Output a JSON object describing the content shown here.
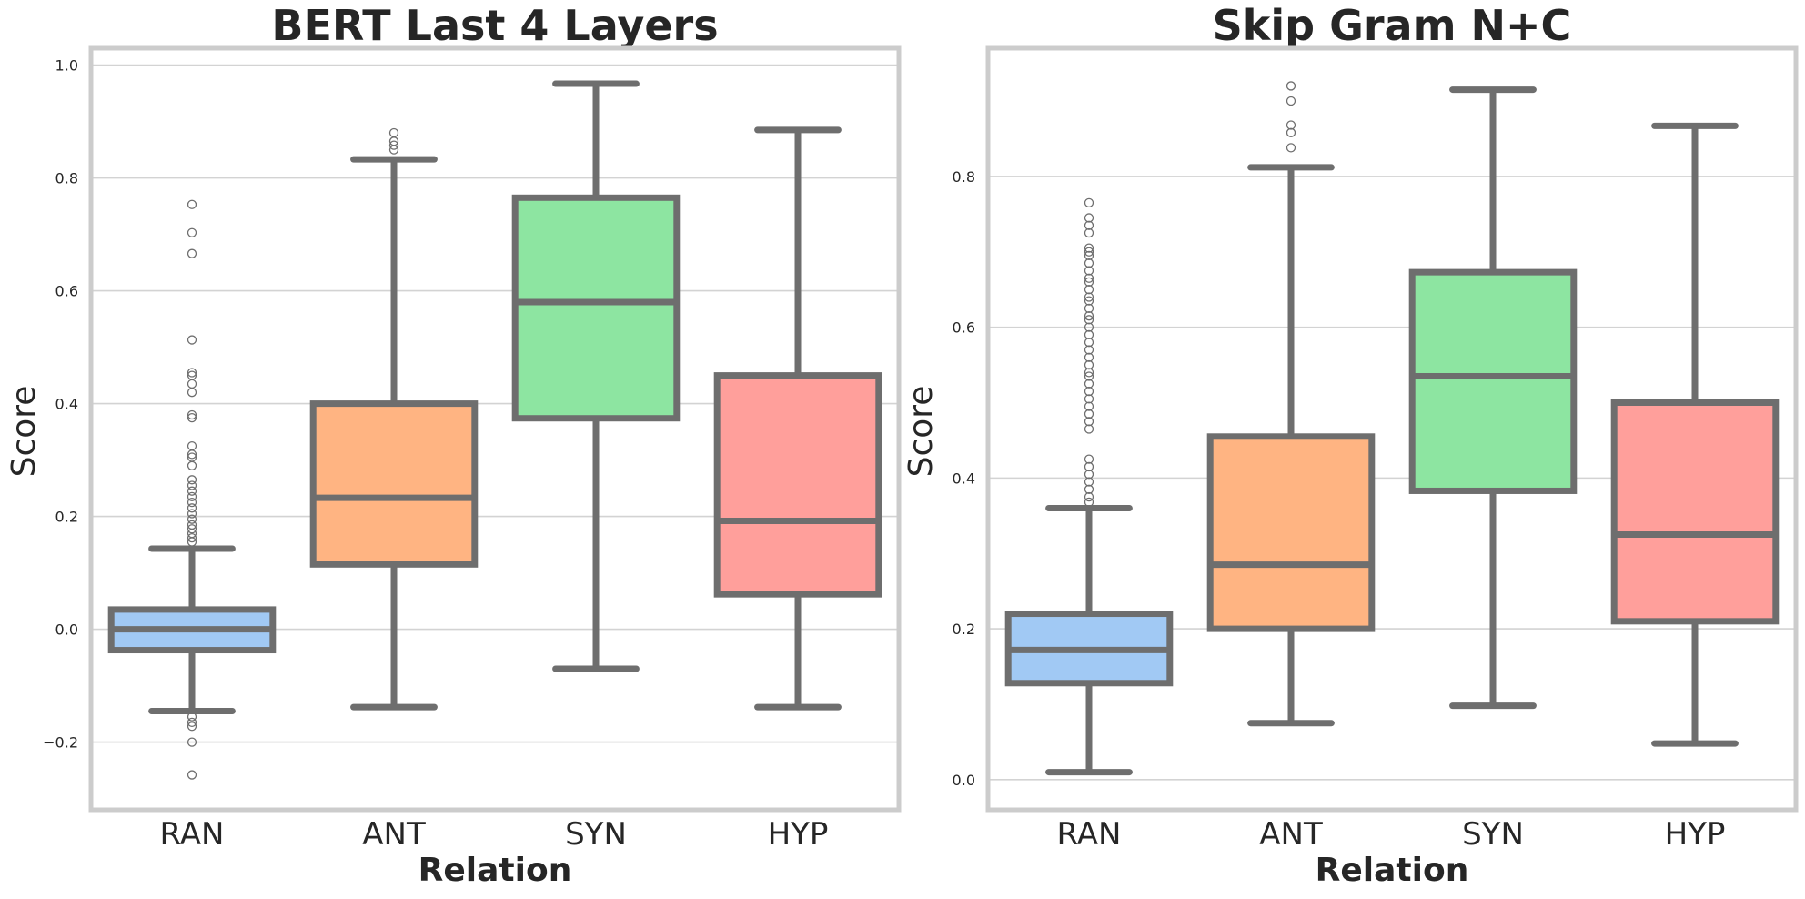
{
  "chart_data": [
    {
      "type": "box",
      "title": "BERT Last 4 Layers",
      "xlabel": "Relation",
      "ylabel": "Score",
      "categories": [
        "RAN",
        "ANT",
        "SYN",
        "HYP"
      ],
      "ylim": [
        -0.32,
        1.03
      ],
      "yticks": [
        -0.2,
        0.0,
        0.2,
        0.4,
        0.6,
        0.8,
        1.0
      ],
      "ytick_labels": [
        "−0.2",
        "0.0",
        "0.2",
        "0.4",
        "0.6",
        "0.8",
        "1.0"
      ],
      "grid": "horizontal",
      "colors": [
        "#a1c9f4",
        "#ffb482",
        "#8de5a1",
        "#ff9f9b"
      ],
      "line_color": "#6e6e6e",
      "boxes": [
        {
          "whislo": -0.145,
          "q1": -0.037,
          "med": 0.0,
          "q3": 0.035,
          "whishi": 0.143,
          "fliers": [
            0.753,
            0.703,
            0.666,
            0.513,
            0.455,
            0.45,
            0.435,
            0.42,
            0.38,
            0.375,
            0.325,
            0.31,
            0.305,
            0.29,
            0.265,
            0.255,
            0.245,
            0.235,
            0.225,
            0.215,
            0.205,
            0.195,
            0.185,
            0.178,
            0.17,
            0.162,
            0.155,
            -0.155,
            -0.165,
            -0.172,
            -0.2,
            -0.258
          ]
        },
        {
          "whislo": -0.138,
          "q1": 0.115,
          "med": 0.233,
          "q3": 0.4,
          "whishi": 0.833,
          "fliers": [
            0.88,
            0.865,
            0.858,
            0.85
          ]
        },
        {
          "whislo": -0.07,
          "q1": 0.374,
          "med": 0.58,
          "q3": 0.765,
          "whishi": 0.967,
          "fliers": []
        },
        {
          "whislo": -0.138,
          "q1": 0.062,
          "med": 0.192,
          "q3": 0.45,
          "whishi": 0.885,
          "fliers": []
        }
      ]
    },
    {
      "type": "box",
      "title": "Skip Gram N+C",
      "xlabel": "Relation",
      "ylabel": "Score",
      "categories": [
        "RAN",
        "ANT",
        "SYN",
        "HYP"
      ],
      "ylim": [
        -0.04,
        0.97
      ],
      "yticks": [
        0.0,
        0.2,
        0.4,
        0.6,
        0.8
      ],
      "ytick_labels": [
        "0.0",
        "0.2",
        "0.4",
        "0.6",
        "0.8"
      ],
      "grid": "horizontal",
      "colors": [
        "#a1c9f4",
        "#ffb482",
        "#8de5a1",
        "#ff9f9b"
      ],
      "line_color": "#6e6e6e",
      "boxes": [
        {
          "whislo": 0.01,
          "q1": 0.128,
          "med": 0.172,
          "q3": 0.22,
          "whishi": 0.36,
          "fliers": [
            0.765,
            0.745,
            0.735,
            0.725,
            0.705,
            0.7,
            0.695,
            0.685,
            0.675,
            0.665,
            0.66,
            0.65,
            0.64,
            0.635,
            0.625,
            0.615,
            0.61,
            0.6,
            0.59,
            0.58,
            0.57,
            0.56,
            0.55,
            0.54,
            0.535,
            0.525,
            0.515,
            0.505,
            0.495,
            0.485,
            0.475,
            0.465,
            0.425,
            0.415,
            0.405,
            0.395,
            0.385,
            0.375,
            0.368
          ]
        },
        {
          "whislo": 0.075,
          "q1": 0.2,
          "med": 0.285,
          "q3": 0.455,
          "whishi": 0.812,
          "fliers": [
            0.92,
            0.9,
            0.868,
            0.858,
            0.838
          ]
        },
        {
          "whislo": 0.098,
          "q1": 0.383,
          "med": 0.535,
          "q3": 0.673,
          "whishi": 0.915,
          "fliers": []
        },
        {
          "whislo": 0.048,
          "q1": 0.21,
          "med": 0.325,
          "q3": 0.5,
          "whishi": 0.867,
          "fliers": []
        }
      ]
    }
  ]
}
